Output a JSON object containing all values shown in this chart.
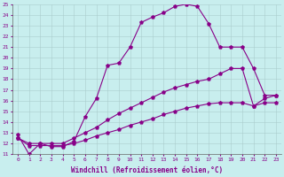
{
  "xlabel": "Windchill (Refroidissement éolien,°C)",
  "ylabel": "",
  "xlim": [
    -0.5,
    23.5
  ],
  "ylim": [
    11,
    25
  ],
  "bg_color": "#c8eeee",
  "grid_color": "#aacccc",
  "line_color": "#880088",
  "line1_x": [
    0,
    1,
    2,
    3,
    4,
    5,
    6,
    7,
    8,
    9,
    10,
    11,
    12,
    13,
    14,
    15,
    16,
    17,
    18,
    19,
    20,
    21,
    22,
    23
  ],
  "line1_y": [
    12.8,
    11.0,
    12.0,
    11.7,
    11.7,
    12.2,
    14.5,
    16.2,
    19.3,
    19.5,
    21.0,
    23.3,
    23.8,
    24.2,
    24.8,
    25.0,
    24.8,
    23.2,
    21.0,
    21.0,
    21.0,
    19.0,
    16.5,
    16.5
  ],
  "line2_x": [
    0,
    1,
    2,
    3,
    4,
    5,
    6,
    7,
    8,
    9,
    10,
    11,
    12,
    13,
    14,
    15,
    16,
    17,
    18,
    19,
    20,
    21,
    22,
    23
  ],
  "line2_y": [
    12.5,
    12.0,
    12.0,
    12.0,
    12.0,
    12.5,
    13.0,
    13.5,
    14.2,
    14.8,
    15.3,
    15.8,
    16.3,
    16.8,
    17.2,
    17.5,
    17.8,
    18.0,
    18.5,
    19.0,
    19.0,
    15.5,
    16.2,
    16.5
  ],
  "line3_x": [
    0,
    1,
    2,
    3,
    4,
    5,
    6,
    7,
    8,
    9,
    10,
    11,
    12,
    13,
    14,
    15,
    16,
    17,
    18,
    19,
    20,
    21,
    22,
    23
  ],
  "line3_y": [
    12.5,
    11.8,
    11.8,
    11.8,
    11.8,
    12.0,
    12.3,
    12.7,
    13.0,
    13.3,
    13.7,
    14.0,
    14.3,
    14.7,
    15.0,
    15.3,
    15.5,
    15.7,
    15.8,
    15.8,
    15.8,
    15.5,
    15.8,
    15.8
  ],
  "marker": "p",
  "marker_size": 2.5,
  "line_width": 0.8,
  "xtick_labels": [
    "0",
    "1",
    "2",
    "3",
    "4",
    "5",
    "6",
    "7",
    "8",
    "9",
    "10",
    "11",
    "12",
    "13",
    "14",
    "15",
    "16",
    "17",
    "18",
    "19",
    "20",
    "21",
    "22",
    "23"
  ],
  "ytick_labels": [
    "11",
    "12",
    "13",
    "14",
    "15",
    "16",
    "17",
    "18",
    "19",
    "20",
    "21",
    "22",
    "23",
    "24",
    "25"
  ],
  "tick_fontsize": 4.5,
  "xlabel_fontsize": 5.5
}
